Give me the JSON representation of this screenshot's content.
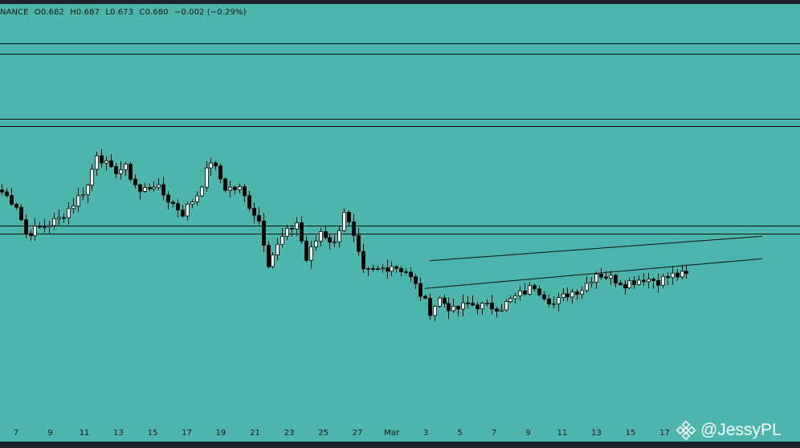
{
  "header": {
    "exchange": "NANCE",
    "open": "O0.682",
    "high": "H0.687",
    "low": "L0.673",
    "close": "C0.680",
    "change": "−0.002 (−0.29%)"
  },
  "watermark": {
    "text": "@JessyPL",
    "icon": "binance-logo-icon"
  },
  "colors": {
    "background": "#4db6ac",
    "up_candle": "#ffffff",
    "down_candle": "#000000",
    "lines": "#111111"
  },
  "chart_data": {
    "type": "candlestick",
    "x_tick_labels": [
      "7",
      "9",
      "11",
      "13",
      "15",
      "17",
      "19",
      "21",
      "23",
      "25",
      "27",
      "Mar",
      "3",
      "5",
      "7",
      "9",
      "11",
      "13",
      "15",
      "17"
    ],
    "y_range": [
      0.5,
      1.3
    ],
    "grid": false,
    "horizontal_levels": [
      1.224,
      1.205,
      1.08,
      1.066,
      0.876,
      0.86
    ],
    "channel": {
      "upper": {
        "from": [
          90,
          0.808
        ],
        "to": [
          160,
          0.855
        ]
      },
      "lower": {
        "from": [
          89,
          0.755
        ],
        "to": [
          160,
          0.812
        ]
      }
    },
    "series_path": [
      {
        "i": 0,
        "price": 0.94
      },
      {
        "i": 3,
        "price": 0.915
      },
      {
        "i": 5,
        "price": 0.86
      },
      {
        "i": 9,
        "price": 0.875
      },
      {
        "i": 12,
        "price": 0.888
      },
      {
        "i": 15,
        "price": 0.918
      },
      {
        "i": 18,
        "price": 0.952
      },
      {
        "i": 20,
        "price": 1.015
      },
      {
        "i": 23,
        "price": 0.98
      },
      {
        "i": 26,
        "price": 0.985
      },
      {
        "i": 29,
        "price": 0.94
      },
      {
        "i": 32,
        "price": 0.955
      },
      {
        "i": 35,
        "price": 0.925
      },
      {
        "i": 38,
        "price": 0.9
      },
      {
        "i": 41,
        "price": 0.935
      },
      {
        "i": 44,
        "price": 1.0
      },
      {
        "i": 47,
        "price": 0.948
      },
      {
        "i": 50,
        "price": 0.945
      },
      {
        "i": 54,
        "price": 0.885
      },
      {
        "i": 56,
        "price": 0.805
      },
      {
        "i": 59,
        "price": 0.852
      },
      {
        "i": 62,
        "price": 0.882
      },
      {
        "i": 64,
        "price": 0.81
      },
      {
        "i": 67,
        "price": 0.865
      },
      {
        "i": 70,
        "price": 0.84
      },
      {
        "i": 72,
        "price": 0.905
      },
      {
        "i": 74,
        "price": 0.85
      },
      {
        "i": 76,
        "price": 0.785
      },
      {
        "i": 79,
        "price": 0.79
      },
      {
        "i": 82,
        "price": 0.8
      },
      {
        "i": 85,
        "price": 0.788
      },
      {
        "i": 87,
        "price": 0.76
      },
      {
        "i": 90,
        "price": 0.712
      },
      {
        "i": 92,
        "price": 0.735
      },
      {
        "i": 95,
        "price": 0.712
      },
      {
        "i": 98,
        "price": 0.725
      },
      {
        "i": 102,
        "price": 0.72
      },
      {
        "i": 105,
        "price": 0.72
      },
      {
        "i": 108,
        "price": 0.738
      },
      {
        "i": 112,
        "price": 0.76
      },
      {
        "i": 116,
        "price": 0.725
      },
      {
        "i": 119,
        "price": 0.745
      },
      {
        "i": 122,
        "price": 0.755
      },
      {
        "i": 125,
        "price": 0.785
      },
      {
        "i": 128,
        "price": 0.775
      },
      {
        "i": 131,
        "price": 0.765
      },
      {
        "i": 135,
        "price": 0.775
      },
      {
        "i": 138,
        "price": 0.77
      },
      {
        "i": 141,
        "price": 0.78
      },
      {
        "i": 144,
        "price": 0.78
      }
    ]
  }
}
